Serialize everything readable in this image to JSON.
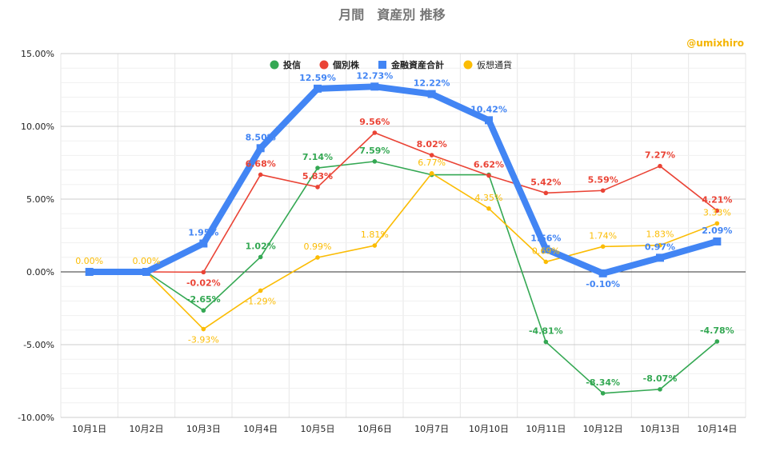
{
  "chart_data": {
    "type": "line",
    "title": "月間　資産別 推移",
    "credit": "@umixhiro",
    "categories": [
      "10月1日",
      "10月2日",
      "10月3日",
      "10月4日",
      "10月5日",
      "10月6日",
      "10月7日",
      "10月10日",
      "10月11日",
      "10月12日",
      "10月13日",
      "10月14日"
    ],
    "ylim": [
      -10,
      15
    ],
    "yticks": [
      15,
      10,
      5,
      0,
      -5,
      -10
    ],
    "ytick_labels": [
      "15.00%",
      "10.00%",
      "5.00%",
      "0.00%",
      "-5.00%",
      "-10.00%"
    ],
    "grid": "vertical and horizontal",
    "legend_position": "top",
    "series": [
      {
        "name": "投信",
        "color": "#34a853",
        "marker": "circle",
        "values": [
          0,
          0,
          -2.65,
          1.02,
          7.14,
          7.59,
          6.67,
          6.67,
          -4.81,
          -8.34,
          -8.07,
          -4.78
        ],
        "labels": [
          "",
          "",
          "-2.65%",
          "1.02%",
          "7.14%",
          "7.59%",
          "",
          "",
          "-4.81%",
          "-8.34%",
          "-8.07%",
          "-4.78%"
        ]
      },
      {
        "name": "個別株",
        "color": "#ea4335",
        "marker": "circle",
        "values": [
          0,
          0,
          -0.02,
          6.68,
          5.83,
          9.56,
          8.02,
          6.62,
          5.42,
          5.59,
          7.27,
          4.21
        ],
        "labels": [
          "",
          "",
          "-0.02%",
          "6.68%",
          "5.83%",
          "9.56%",
          "8.02%",
          "6.62%",
          "5.42%",
          "5.59%",
          "7.27%",
          "4.21%"
        ]
      },
      {
        "name": "金融資産合計",
        "color": "#4285f4",
        "marker": "square",
        "values": [
          0,
          0,
          1.95,
          8.5,
          12.59,
          12.73,
          12.22,
          10.42,
          1.56,
          -0.1,
          0.97,
          2.09
        ],
        "labels": [
          "",
          "",
          "1.95%",
          "8.50%",
          "12.59%",
          "12.73%",
          "12.22%",
          "10.42%",
          "1.56%",
          "-0.10%",
          "0.97%",
          "2.09%"
        ]
      },
      {
        "name": "仮想通貨",
        "color": "#fbbc04",
        "marker": "circle",
        "values": [
          0,
          0,
          -3.93,
          -1.29,
          0.99,
          1.81,
          6.77,
          4.35,
          0.69,
          1.74,
          1.83,
          3.33
        ],
        "labels": [
          "0.00%",
          "0.00%",
          "-3.93%",
          "-1.29%",
          "0.99%",
          "1.81%",
          "6.77%",
          "4.35%",
          "0.69%",
          "1.74%",
          "1.83%",
          "3.33%"
        ]
      }
    ]
  }
}
